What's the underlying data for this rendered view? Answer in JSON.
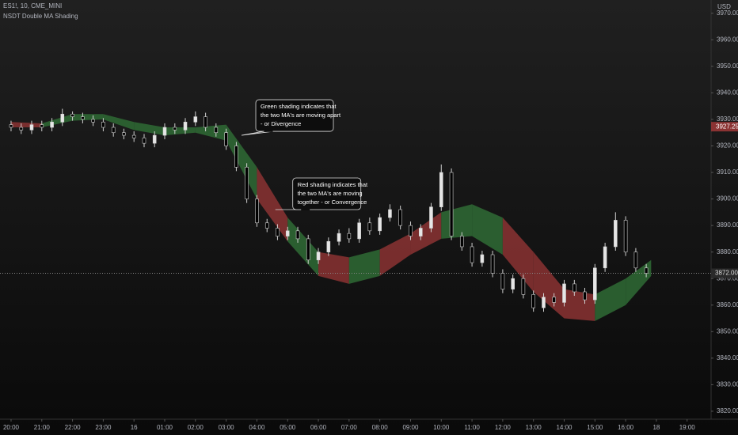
{
  "chart_data": {
    "type": "candlestick",
    "title": "ES1!, 10, CME_MINI",
    "subtitle": "NSDT Double MA Shading",
    "currency": "USD",
    "up_color": "#e6e6e6",
    "down_color": "#000000",
    "xlim": [
      -0.36,
      22.78
    ],
    "ylim": [
      3817,
      3975
    ],
    "xticks": [
      {
        "value": 0,
        "label": "20:00"
      },
      {
        "value": 1,
        "label": "21:00"
      },
      {
        "value": 2,
        "label": "22:00"
      },
      {
        "value": 3,
        "label": "23:00"
      },
      {
        "value": 4,
        "label": "16"
      },
      {
        "value": 5,
        "label": "01:00"
      },
      {
        "value": 6,
        "label": "02:00"
      },
      {
        "value": 7,
        "label": "03:00"
      },
      {
        "value": 8,
        "label": "04:00"
      },
      {
        "value": 9,
        "label": "05:00"
      },
      {
        "value": 10,
        "label": "06:00"
      },
      {
        "value": 11,
        "label": "07:00"
      },
      {
        "value": 12,
        "label": "08:00"
      },
      {
        "value": 13,
        "label": "09:00"
      },
      {
        "value": 14,
        "label": "10:00"
      },
      {
        "value": 15,
        "label": "11:00"
      },
      {
        "value": 16,
        "label": "12:00"
      },
      {
        "value": 17,
        "label": "13:00"
      },
      {
        "value": 18,
        "label": "14:00"
      },
      {
        "value": 19,
        "label": "15:00"
      },
      {
        "value": 20,
        "label": "16:00"
      },
      {
        "value": 21,
        "label": "18"
      },
      {
        "value": 22,
        "label": "19:00"
      }
    ],
    "yticks": [
      {
        "value": 3820,
        "label": "3820.00"
      },
      {
        "value": 3830,
        "label": "3830.00"
      },
      {
        "value": 3840,
        "label": "3840.00"
      },
      {
        "value": 3850,
        "label": "3850.00"
      },
      {
        "value": 3860,
        "label": "3860.00"
      },
      {
        "value": 3870,
        "label": "3870.00"
      },
      {
        "value": 3880,
        "label": "3880.00"
      },
      {
        "value": 3890,
        "label": "3890.00"
      },
      {
        "value": 3900,
        "label": "3900.00"
      },
      {
        "value": 3910,
        "label": "3910.00"
      },
      {
        "value": 3920,
        "label": "3920.00"
      },
      {
        "value": 3930,
        "label": "3930.00"
      },
      {
        "value": 3940,
        "label": "3940.00"
      },
      {
        "value": 3950,
        "label": "3950.00"
      },
      {
        "value": 3960,
        "label": "3960.00"
      },
      {
        "value": 3970,
        "label": "3970.00"
      }
    ],
    "x": [
      0,
      0.33,
      0.67,
      1,
      1.33,
      1.67,
      2,
      2.33,
      2.67,
      3,
      3.33,
      3.67,
      4,
      4.33,
      4.67,
      5,
      5.33,
      5.67,
      6,
      6.33,
      6.67,
      7,
      7.33,
      7.67,
      8,
      8.33,
      8.67,
      9,
      9.33,
      9.67,
      10,
      10.33,
      10.67,
      11,
      11.33,
      11.67,
      12,
      12.33,
      12.67,
      13,
      13.33,
      13.67,
      14,
      14.33,
      14.67,
      15,
      15.33,
      15.67,
      16,
      16.33,
      16.67,
      17,
      17.33,
      17.67,
      18,
      18.33,
      18.67,
      19,
      19.33,
      19.67,
      20,
      20.33,
      20.67
    ],
    "open": [
      3928,
      3927,
      3926,
      3928,
      3927,
      3929,
      3932,
      3931,
      3930,
      3929,
      3927,
      3925,
      3924,
      3923,
      3921,
      3924,
      3927,
      3926,
      3929,
      3931,
      3927,
      3925,
      3920,
      3912,
      3900,
      3891,
      3889,
      3886,
      3888,
      3885,
      3877,
      3880,
      3884,
      3887,
      3885,
      3891,
      3888,
      3893,
      3896,
      3890,
      3886,
      3889,
      3897,
      3910,
      3886,
      3882,
      3876,
      3879,
      3872,
      3866,
      3870,
      3864,
      3859,
      3863,
      3861,
      3868,
      3865,
      3862,
      3874,
      3882,
      3892,
      3880,
      3874
    ],
    "close": [
      3927,
      3926,
      3928,
      3927,
      3929,
      3932,
      3931,
      3930,
      3929,
      3927,
      3925,
      3924,
      3923,
      3921,
      3924,
      3927,
      3926,
      3929,
      3931,
      3927,
      3925,
      3920,
      3912,
      3900,
      3891,
      3889,
      3886,
      3888,
      3885,
      3877,
      3880,
      3884,
      3887,
      3885,
      3891,
      3888,
      3893,
      3896,
      3890,
      3886,
      3889,
      3897,
      3910,
      3886,
      3882,
      3876,
      3879,
      3872,
      3866,
      3870,
      3864,
      3859,
      3863,
      3861,
      3868,
      3865,
      3862,
      3874,
      3882,
      3892,
      3880,
      3874,
      3872
    ],
    "high": [
      3929.5,
      3928.5,
      3929.5,
      3929.5,
      3930.5,
      3934,
      3933,
      3932.5,
      3931.5,
      3930.5,
      3928.5,
      3926.5,
      3925.5,
      3924.5,
      3925.5,
      3928.5,
      3928.5,
      3930.5,
      3933,
      3932.5,
      3928.5,
      3926.5,
      3921.5,
      3913.5,
      3901.5,
      3892.5,
      3890.5,
      3889.5,
      3889.5,
      3886.5,
      3881.5,
      3885.5,
      3888.5,
      3889,
      3892.5,
      3893,
      3894.5,
      3898,
      3897.5,
      3891.5,
      3890.5,
      3898.5,
      3913,
      3911.5,
      3887.5,
      3883.5,
      3880.5,
      3880.5,
      3873.5,
      3871.5,
      3871.5,
      3865.5,
      3864.5,
      3864.5,
      3869.5,
      3869.5,
      3866.5,
      3875.5,
      3883.5,
      3895,
      3893.5,
      3881.5,
      3875.5
    ],
    "low": [
      3925.5,
      3924.5,
      3924.5,
      3925.5,
      3925.5,
      3927.5,
      3929.5,
      3928.5,
      3927.5,
      3925.5,
      3923.5,
      3922.5,
      3921.5,
      3919.5,
      3919.5,
      3922.5,
      3924.5,
      3924.5,
      3927.5,
      3925.5,
      3923.5,
      3918.5,
      3910.5,
      3898.5,
      3889.5,
      3887.5,
      3884.5,
      3884.5,
      3883.5,
      3875.5,
      3875.5,
      3878.5,
      3882.5,
      3883.5,
      3883.5,
      3886.5,
      3886.5,
      3891.5,
      3888.5,
      3884.5,
      3884.5,
      3887.5,
      3895.5,
      3884.5,
      3880.5,
      3874.5,
      3874.5,
      3870.5,
      3864.5,
      3864.5,
      3862.5,
      3857.5,
      3857.5,
      3859.5,
      3859.5,
      3863.5,
      3860.5,
      3860.5,
      3872.5,
      3880.5,
      3878.5,
      3872.5,
      3870.5
    ],
    "ribbon": {
      "x": [
        0,
        1,
        2,
        3,
        4,
        5,
        6,
        7,
        8,
        9,
        10,
        11,
        12,
        13,
        14,
        15,
        16,
        17,
        18,
        19,
        20,
        20.83
      ],
      "upper": [
        3929,
        3928.5,
        3932,
        3932,
        3929,
        3927,
        3927,
        3928,
        3912,
        3893,
        3880,
        3878,
        3881,
        3887,
        3895,
        3898,
        3893,
        3880,
        3866,
        3864,
        3870,
        3877
      ],
      "lower": [
        3927,
        3927,
        3929.5,
        3930,
        3926,
        3924,
        3925,
        3922,
        3900,
        3884,
        3871,
        3868,
        3871,
        3879,
        3885,
        3886,
        3879,
        3865,
        3855,
        3854,
        3860,
        3871
      ],
      "shade": [
        "#8b3333",
        "#2f6b35",
        "#2f6b35",
        "#2f6b35",
        "#2f6b35",
        "#2f6b35",
        "#2f6b35",
        "#2f6b35",
        "#8b3333",
        "#2f6b35",
        "#8b3333",
        "#2f6b35",
        "#8b3333",
        "#8b3333",
        "#2f6b35",
        "#2f6b35",
        "#8b3333",
        "#8b3333",
        "#8b3333",
        "#2f6b35",
        "#2f6b35"
      ]
    },
    "last_price": 3927.25,
    "last_price_color": "#8b3333",
    "crosshair_price": {
      "value": 3872,
      "label": "3872.00"
    },
    "annotations": [
      {
        "lines": [
          "Green shading indicates that",
          "the two MA's are moving apart",
          "- or Divergence"
        ],
        "x": 7.5,
        "y": 3924
      },
      {
        "lines": [
          "Red shading indicates that",
          "the two MA's are moving",
          "together - or Convergence"
        ],
        "x": 8.6,
        "y": 3896
      }
    ]
  }
}
